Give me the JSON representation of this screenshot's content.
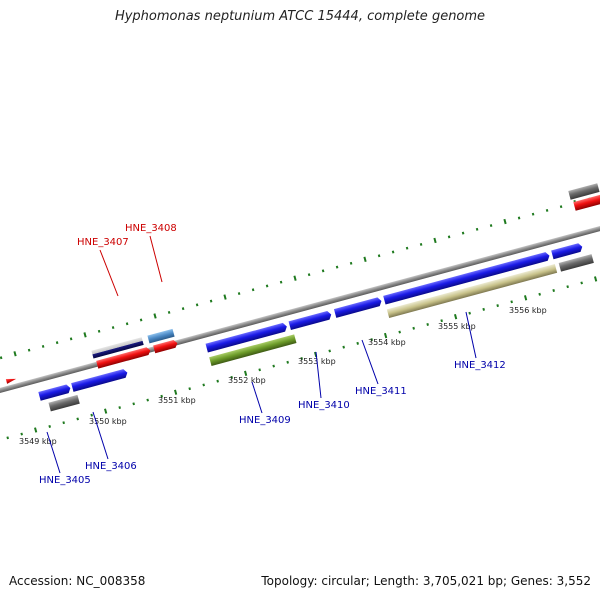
{
  "title": "Hyphomonas neptunium ATCC 15444, complete genome",
  "footer": {
    "accession": "Accession: NC_008358",
    "summary": "Topology: circular; Length: 3,705,021 bp; Genes: 3,552"
  },
  "colors": {
    "backbone": "#8a8a8a",
    "tick": "#1f7a1f",
    "forward_cds": "#1f1fe0",
    "rna": "#e01010",
    "gene": "#6b6b6b",
    "feature_olive": "#6f9a2a",
    "feature_khaki": "#c8c28a",
    "feature_lightblue": "#4d8cc6",
    "label_red": "#cc0000",
    "label_blue": "#0000aa"
  },
  "scale_labels": [
    "3549 kbp",
    "3550 kbp",
    "3551 kbp",
    "3552 kbp",
    "3553 kbp",
    "3554 kbp",
    "3555 kbp",
    "3556 kbp"
  ],
  "gene_labels": [
    {
      "name": "HNE_3405",
      "color": "blue"
    },
    {
      "name": "HNE_3406",
      "color": "blue"
    },
    {
      "name": "HNE_3407",
      "color": "red"
    },
    {
      "name": "HNE_3408",
      "color": "red"
    },
    {
      "name": "HNE_3409",
      "color": "blue"
    },
    {
      "name": "HNE_3410",
      "color": "blue"
    },
    {
      "name": "HNE_3411",
      "color": "blue"
    },
    {
      "name": "HNE_3412",
      "color": "blue"
    }
  ]
}
